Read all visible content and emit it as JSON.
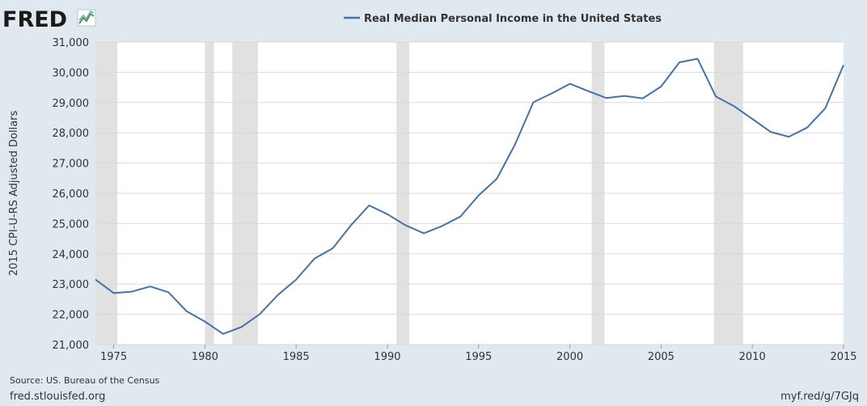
{
  "brand": {
    "logo_text": "FRED",
    "logo_color": "#1a1a1a"
  },
  "footer": {
    "source": "Source: US. Bureau of the Census",
    "site": "fred.stlouisfed.org",
    "short_url": "myf.red/g/7GJq"
  },
  "colors": {
    "background": "#e1e9f0",
    "plot_bg": "#ffffff",
    "line": "#4572a7",
    "recession": "#e1e1e1",
    "grid": "#d9d9d9"
  },
  "chart_data": {
    "type": "line",
    "legend_position": "top-center",
    "ylabel": "2015 CPI-U-RS Adjusted Dollars",
    "xlabel": "",
    "xlim": [
      1974,
      2015
    ],
    "ylim": [
      21000,
      31000
    ],
    "grid": true,
    "x_ticks": [
      1975,
      1980,
      1985,
      1990,
      1995,
      2000,
      2005,
      2010,
      2015
    ],
    "y_ticks": [
      21000,
      22000,
      23000,
      24000,
      25000,
      26000,
      27000,
      28000,
      29000,
      30000,
      31000
    ],
    "y_tick_labels": [
      "21,000",
      "22,000",
      "23,000",
      "24,000",
      "25,000",
      "26,000",
      "27,000",
      "28,000",
      "29,000",
      "30,000",
      "31,000"
    ],
    "recessions": [
      [
        1974,
        1975.2
      ],
      [
        1980,
        1980.5
      ],
      [
        1981.5,
        1982.9
      ],
      [
        1990.5,
        1991.2
      ],
      [
        2001.2,
        2001.9
      ],
      [
        2007.9,
        2009.5
      ]
    ],
    "series": [
      {
        "name": "Real Median Personal Income in the United States",
        "color": "#4572a7",
        "x": [
          1974,
          1975,
          1976,
          1977,
          1978,
          1979,
          1980,
          1981,
          1982,
          1983,
          1984,
          1985,
          1986,
          1987,
          1988,
          1989,
          1990,
          1991,
          1992,
          1993,
          1994,
          1995,
          1996,
          1997,
          1998,
          1999,
          2000,
          2001,
          2002,
          2003,
          2004,
          2005,
          2006,
          2007,
          2008,
          2009,
          2010,
          2011,
          2012,
          2013,
          2014,
          2015
        ],
        "y": [
          23150,
          22700,
          22750,
          22920,
          22730,
          22100,
          21760,
          21350,
          21580,
          22000,
          22640,
          23150,
          23840,
          24180,
          24940,
          25600,
          25310,
          24940,
          24680,
          24920,
          25230,
          25930,
          26480,
          27620,
          29010,
          29300,
          29620,
          29380,
          29150,
          29220,
          29140,
          29530,
          30330,
          30450,
          29200,
          28880,
          28460,
          28030,
          27870,
          28170,
          28810,
          30240
        ]
      }
    ]
  }
}
